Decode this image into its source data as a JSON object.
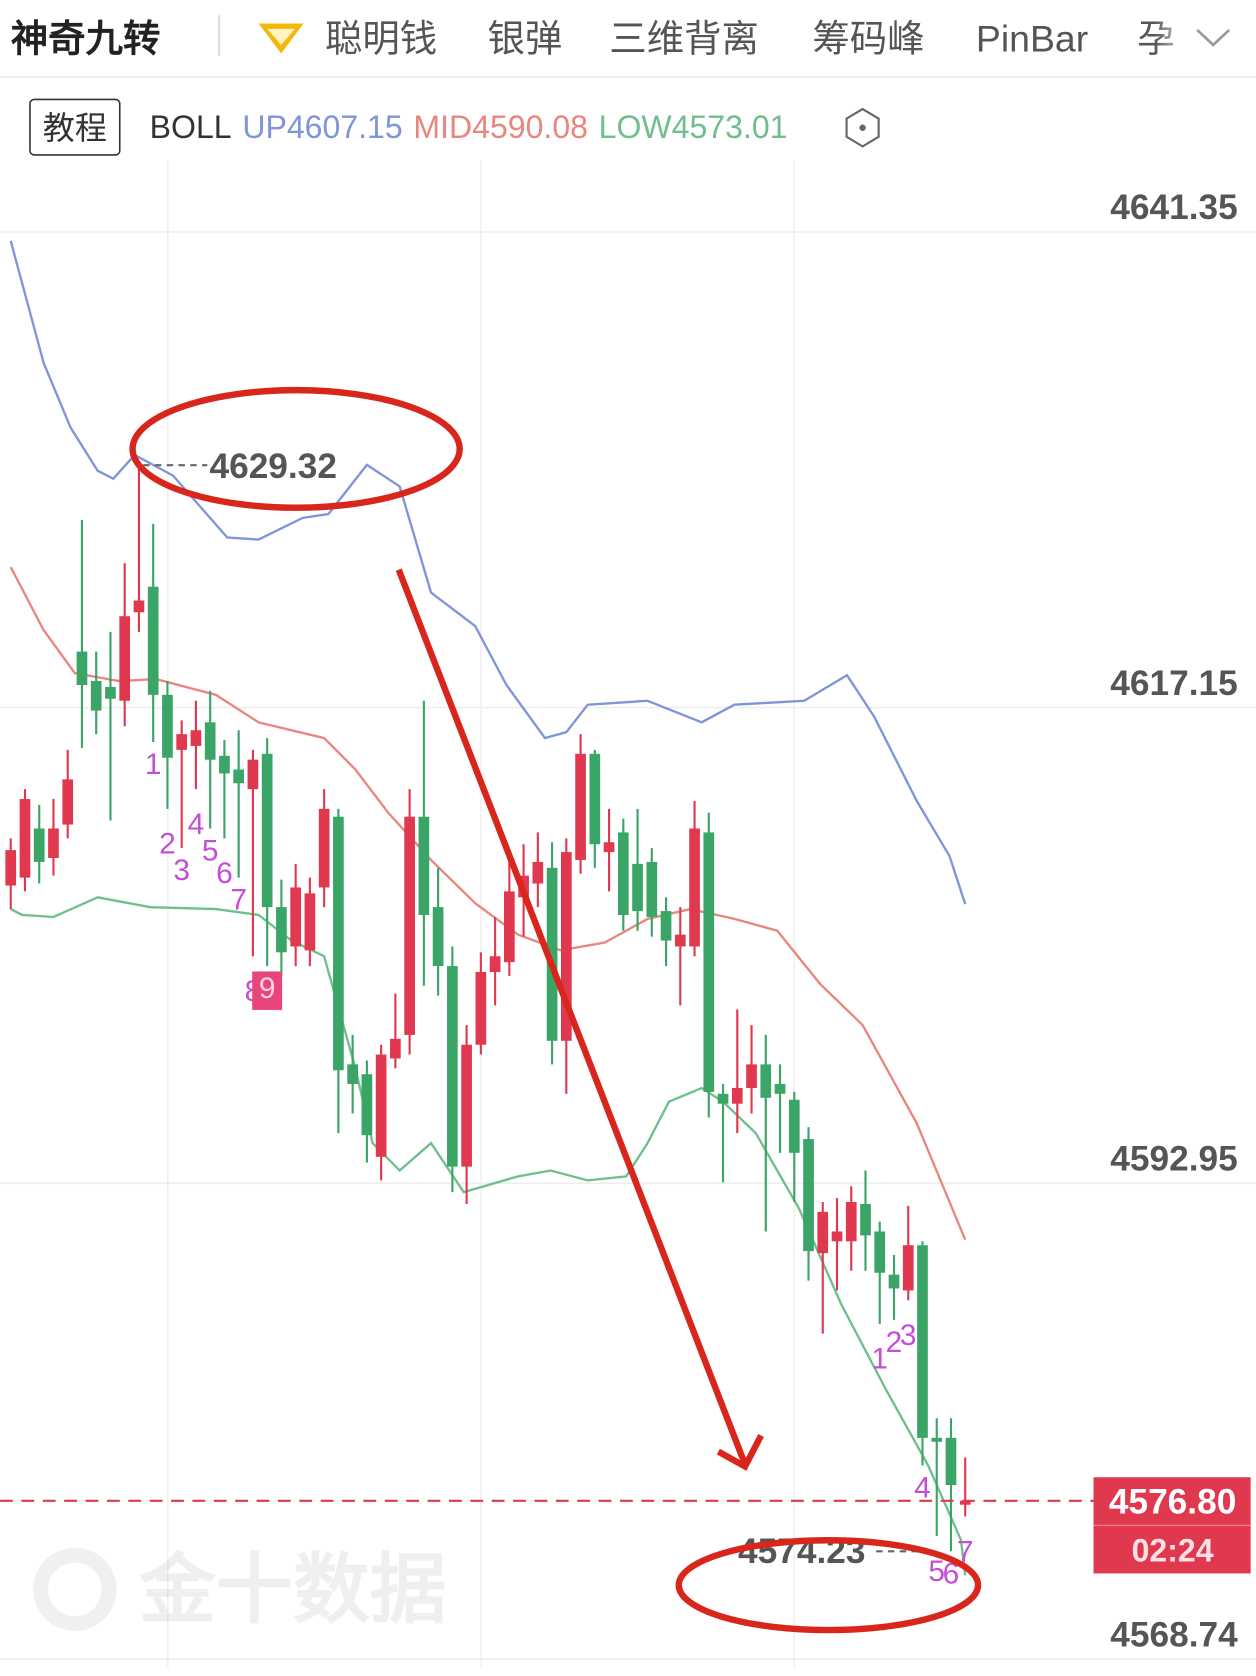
{
  "header": {
    "tabs": [
      "神奇九转",
      "聪明钱",
      "银弹",
      "三维背离",
      "筹码峰",
      "PinBar",
      "孕"
    ]
  },
  "toolbar": {
    "tutorial": "教程",
    "indicator": "BOLL"
  },
  "watermark": "金十数据",
  "chart_data": {
    "type": "candlestick",
    "open": [
      4608.1,
      4608.5,
      4611.0,
      4609.5,
      4611.2,
      4620.0,
      4618.5,
      4618.2,
      4617.5,
      4622.0,
      4623.3,
      4617.8,
      4615.0,
      4615.2,
      4616.4,
      4614.7,
      4614.0,
      4613.0,
      4614.8,
      4607.0,
      4605.0,
      4604.8,
      4608.0,
      4611.6,
      4599.0,
      4598.5,
      4594.3,
      4599.3,
      4600.5,
      4611.6,
      4607.0,
      4604.0,
      4593.8,
      4600.0,
      4603.7,
      4604.2,
      4607.5,
      4608.2,
      4609.0,
      4600.2,
      4609.4,
      4614.8,
      4609.8,
      4610.8,
      4609.2,
      4609.3,
      4606.8,
      4605.0,
      4605.0,
      4610.8,
      4597.5,
      4597.0,
      4597.8,
      4599.0,
      4598.0,
      4597.2,
      4595.2,
      4589.4,
      4590.0,
      4590.0,
      4591.9,
      4590.5,
      4588.3,
      4587.5,
      4589.8,
      4580.0,
      4580.0,
      4576.6
    ],
    "high": [
      4610.5,
      4613.0,
      4612.2,
      4612.5,
      4615.0,
      4626.7,
      4620.0,
      4621.0,
      4624.5,
      4629.32,
      4626.5,
      4618.5,
      4616.5,
      4617.5,
      4618.0,
      4615.5,
      4616.0,
      4615.0,
      4615.6,
      4608.4,
      4609.2,
      4608.5,
      4613.0,
      4612.0,
      4600.5,
      4599.2,
      4600.0,
      4602.6,
      4613.0,
      4617.5,
      4609.0,
      4605.0,
      4601.0,
      4604.7,
      4606.5,
      4609.5,
      4610.2,
      4610.8,
      4610.3,
      4610.5,
      4615.8,
      4615.0,
      4612.0,
      4611.5,
      4612.0,
      4610.0,
      4607.5,
      4607.0,
      4612.4,
      4611.8,
      4598.0,
      4601.8,
      4601.0,
      4600.5,
      4599.0,
      4597.6,
      4595.8,
      4592.0,
      4592.2,
      4592.8,
      4593.6,
      4591.0,
      4589.3,
      4591.8,
      4590.0,
      4581.0,
      4581.0,
      4579.0
    ],
    "low": [
      4606.9,
      4607.8,
      4608.2,
      4608.6,
      4610.5,
      4615.1,
      4615.8,
      4611.4,
      4616.2,
      4621.0,
      4615.4,
      4612.0,
      4610.0,
      4613.0,
      4611.0,
      4610.5,
      4608.5,
      4604.5,
      4604.0,
      4603.5,
      4604.0,
      4604.0,
      4607.0,
      4595.5,
      4596.5,
      4594.0,
      4593.1,
      4598.8,
      4599.5,
      4603.0,
      4602.5,
      4592.5,
      4591.9,
      4599.5,
      4602.0,
      4603.5,
      4605.5,
      4607.0,
      4599.0,
      4597.5,
      4608.7,
      4609.0,
      4607.8,
      4605.8,
      4605.8,
      4605.5,
      4604.0,
      4602.0,
      4604.5,
      4596.3,
      4593.0,
      4595.5,
      4596.5,
      4590.5,
      4594.5,
      4592.0,
      4588.0,
      4585.3,
      4587.5,
      4588.5,
      4588.5,
      4585.8,
      4586.0,
      4587.0,
      4578.6,
      4575.0,
      4574.23,
      4576.0
    ],
    "close": [
      4609.9,
      4612.5,
      4609.3,
      4611.0,
      4613.5,
      4618.3,
      4617.0,
      4617.6,
      4621.8,
      4622.6,
      4617.8,
      4614.6,
      4615.8,
      4616.0,
      4614.5,
      4613.8,
      4613.3,
      4614.5,
      4607.0,
      4604.7,
      4608.0,
      4607.7,
      4612.0,
      4598.7,
      4598.0,
      4595.4,
      4599.5,
      4600.3,
      4611.6,
      4606.6,
      4604.0,
      4593.8,
      4600.0,
      4603.7,
      4604.5,
      4607.8,
      4608.6,
      4609.3,
      4600.2,
      4609.8,
      4614.8,
      4610.2,
      4610.3,
      4606.6,
      4606.8,
      4606.5,
      4605.3,
      4605.6,
      4611.0,
      4597.6,
      4597.0,
      4597.8,
      4599.0,
      4597.3,
      4597.5,
      4594.5,
      4589.5,
      4591.5,
      4590.5,
      4592.0,
      4590.3,
      4588.4,
      4587.6,
      4589.8,
      4580.0,
      4579.8,
      4577.6,
      4576.8
    ],
    "td_counts": [
      null,
      null,
      null,
      null,
      null,
      null,
      null,
      null,
      null,
      null,
      "1",
      "2",
      "3",
      "4",
      "5",
      "6",
      "7",
      "8",
      "9",
      null,
      null,
      null,
      null,
      null,
      null,
      null,
      null,
      null,
      null,
      null,
      null,
      null,
      null,
      null,
      null,
      null,
      null,
      null,
      null,
      null,
      null,
      null,
      null,
      null,
      null,
      null,
      null,
      null,
      null,
      null,
      null,
      null,
      null,
      null,
      null,
      null,
      null,
      null,
      null,
      null,
      null,
      "1",
      "2",
      "3",
      "4",
      "5",
      "6",
      "7"
    ],
    "up_color": "#e0394f",
    "down_color": "#3aa566",
    "td_color": "#c44fd6",
    "series": [
      {
        "name": "UP",
        "color": "#7f95d8",
        "x": [
          0,
          2.3,
          4.2,
          6.1,
          7.2,
          8.7,
          11.4,
          15.2,
          17.4,
          20.5,
          22.3,
          25,
          27.3,
          29.5,
          32.6,
          34.8,
          37.5,
          39,
          40.5,
          44.7,
          48.5,
          50.8,
          55.7,
          58.7,
          60.6,
          63.6,
          65.9,
          67
        ],
        "values": [
          4640.9,
          4634.7,
          4631.4,
          4629.2,
          4628.8,
          4630.0,
          4628.95,
          4625.8,
          4625.7,
          4626.8,
          4627.0,
          4629.5,
          4628.4,
          4623.0,
          4621.3,
          4618.3,
          4615.6,
          4615.9,
          4617.3,
          4617.5,
          4616.4,
          4617.3,
          4617.5,
          4618.8,
          4616.7,
          4612.4,
          4609.6,
          4607.15
        ]
      },
      {
        "name": "MID",
        "color": "#e8877f",
        "x": [
          0,
          2.3,
          4.5,
          7.6,
          10.2,
          14.4,
          17.4,
          22,
          24.2,
          26.5,
          29.5,
          32.6,
          35.6,
          38.6,
          41.7,
          44.7,
          47.7,
          50.8,
          53.8,
          56.8,
          59.8,
          63.6,
          67
        ],
        "values": [
          4624.3,
          4621.1,
          4618.9,
          4618.5,
          4618.6,
          4617.8,
          4616.4,
          4615.6,
          4614.0,
          4611.8,
          4609.4,
          4607.2,
          4605.6,
          4604.8,
          4605.2,
          4606.4,
          4606.9,
          4606.4,
          4605.8,
          4603.1,
          4601.0,
          4596.0,
          4590.08
        ]
      },
      {
        "name": "LOW",
        "color": "#6fbf8c",
        "x": [
          0,
          0.8,
          3,
          6.1,
          9.8,
          14.4,
          17.4,
          19.7,
          22,
          24.2,
          25.4,
          27.3,
          29.5,
          31.8,
          35.6,
          37.9,
          40.5,
          43.2,
          44.7,
          46.2,
          48.5,
          50,
          52.3,
          55.3,
          58.3,
          61.4,
          64.4,
          66.7,
          67
        ],
        "values": [
          4606.9,
          4606.6,
          4606.5,
          4607.5,
          4607.0,
          4606.9,
          4606.6,
          4605.3,
          4604.5,
          4598.8,
          4595.0,
          4593.6,
          4595.0,
          4592.5,
          4593.3,
          4593.6,
          4593.1,
          4593.3,
          4595.0,
          4597.1,
          4597.8,
          4597.1,
          4595.5,
          4591.7,
          4586.8,
          4582.5,
          4578.6,
          4574.8,
          4573.01
        ]
      }
    ],
    "ylim": [
      4568.32,
      4644.72
    ],
    "yticks": [
      4568.74,
      4592.95,
      4617.15,
      4641.35
    ],
    "high_mark": 4629.32,
    "low_mark": 4574.23,
    "current_price": {
      "value": 4576.8,
      "label": "4576.80"
    },
    "countdown": "02:24",
    "price_color": "#e0394f"
  }
}
